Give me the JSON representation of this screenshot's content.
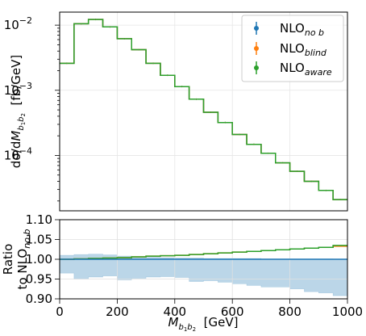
{
  "chart_data": [
    {
      "type": "line",
      "subtype": "step-histogram",
      "xscale": "linear",
      "yscale": "log",
      "xlim": [
        0,
        1000
      ],
      "ylim_log10": [
        -4.85,
        -1.8
      ],
      "ylabel": "dσ/dM_{b1b2} [fb/GeV]",
      "ylabel_parts": {
        "pre": "dσ/d",
        "M": "M",
        "b1": "b",
        "s1": "1",
        "b2": "b",
        "s2": "2",
        "unit": "  [fb/GeV]"
      },
      "yticks": [
        {
          "base": "10",
          "exp": "−2",
          "log10": -2
        },
        {
          "base": "10",
          "exp": "−3",
          "log10": -3
        },
        {
          "base": "10",
          "exp": "−4",
          "log10": -4
        }
      ],
      "grid": true,
      "legend_position": "top-right",
      "bin_edges": [
        0,
        50,
        100,
        150,
        200,
        250,
        300,
        350,
        400,
        450,
        500,
        550,
        600,
        650,
        700,
        750,
        800,
        850,
        900,
        950,
        1000
      ],
      "series": [
        {
          "name": "NLO_{no b}",
          "label_main": "NLO",
          "label_sub": "no b",
          "color": "#1f77b4",
          "values": [
            0.0026,
            0.0105,
            0.0122,
            0.0094,
            0.0062,
            0.0042,
            0.0026,
            0.0017,
            0.00114,
            0.00073,
            0.00046,
            0.00032,
            0.00021,
            0.000148,
            0.000108,
            7.7e-05,
            5.7e-05,
            4e-05,
            2.9e-05,
            2.1e-05
          ]
        },
        {
          "name": "NLO_{blind}",
          "label_main": "NLO",
          "label_sub": "blind",
          "color": "#ff7f0e",
          "values": [
            0.0026,
            0.0105,
            0.0122,
            0.0094,
            0.0062,
            0.0042,
            0.0026,
            0.0017,
            0.00114,
            0.00073,
            0.00046,
            0.00032,
            0.00021,
            0.000148,
            0.000108,
            7.7e-05,
            5.7e-05,
            4e-05,
            2.9e-05,
            2.1e-05
          ]
        },
        {
          "name": "NLO_{aware}",
          "label_main": "NLO",
          "label_sub": "aware",
          "color": "#2ca02c",
          "values": [
            0.0026,
            0.0105,
            0.0122,
            0.0094,
            0.0062,
            0.0042,
            0.0026,
            0.0017,
            0.00114,
            0.00073,
            0.00046,
            0.00032,
            0.00021,
            0.000148,
            0.000108,
            7.7e-05,
            5.7e-05,
            4e-05,
            2.9e-05,
            2.1e-05
          ]
        }
      ]
    },
    {
      "type": "line",
      "subtype": "ratio-step",
      "xlabel": "M_{b1b2} [GeV]",
      "xlabel_parts": {
        "M": "M",
        "b1": "b",
        "s1": "1",
        "b2": "b",
        "s2": "2",
        "unit": "  [GeV]"
      },
      "ylabel_line1": "Ratio",
      "ylabel_line2_main": "to NLO",
      "ylabel_line2_sub": "no b",
      "xlim": [
        0,
        1000
      ],
      "ylim": [
        0.9,
        1.1
      ],
      "xticks": [
        "0",
        "200",
        "400",
        "600",
        "800",
        "1000"
      ],
      "xtick_values": [
        0,
        200,
        400,
        600,
        800,
        1000
      ],
      "yticks": [
        "0.90",
        "0.95",
        "1.00",
        "1.05",
        "1.10"
      ],
      "ytick_values": [
        0.9,
        0.95,
        1.0,
        1.05,
        1.1
      ],
      "grid": true,
      "bin_edges": [
        0,
        50,
        100,
        150,
        200,
        250,
        300,
        350,
        400,
        450,
        500,
        550,
        600,
        650,
        700,
        750,
        800,
        850,
        900,
        950,
        1000
      ],
      "band": {
        "color": "#1f77b4",
        "upper": [
          1.01,
          1.012,
          1.013,
          1.011,
          1.008,
          1.006,
          1.005,
          1.004,
          1.003,
          1.003,
          1.002,
          1.002,
          1.002,
          1.002,
          1.001,
          1.001,
          1.001,
          1.001,
          1.001,
          1.0
        ],
        "lower": [
          0.965,
          0.95,
          0.955,
          0.958,
          0.948,
          0.952,
          0.955,
          0.956,
          0.954,
          0.944,
          0.946,
          0.942,
          0.938,
          0.934,
          0.93,
          0.93,
          0.925,
          0.918,
          0.915,
          0.908
        ]
      },
      "series": [
        {
          "name": "NLO_{no b}",
          "color": "#1f77b4",
          "values": [
            1.0,
            1.0,
            1.0,
            1.0,
            1.0,
            1.0,
            1.0,
            1.0,
            1.0,
            1.0,
            1.0,
            1.0,
            1.0,
            1.0,
            1.0,
            1.0,
            1.0,
            1.0,
            1.0,
            1.0
          ]
        },
        {
          "name": "NLO_{blind}",
          "color": "#ff7f0e",
          "values": [
            1.0,
            1.001,
            1.002,
            1.003,
            1.004,
            1.006,
            1.008,
            1.009,
            1.01,
            1.012,
            1.014,
            1.016,
            1.018,
            1.02,
            1.022,
            1.024,
            1.026,
            1.028,
            1.03,
            1.033
          ]
        },
        {
          "name": "NLO_{aware}",
          "color": "#2ca02c",
          "values": [
            1.0,
            1.001,
            1.002,
            1.003,
            1.004,
            1.006,
            1.008,
            1.009,
            1.01,
            1.012,
            1.014,
            1.016,
            1.018,
            1.02,
            1.022,
            1.024,
            1.026,
            1.028,
            1.03,
            1.035
          ]
        }
      ]
    }
  ]
}
